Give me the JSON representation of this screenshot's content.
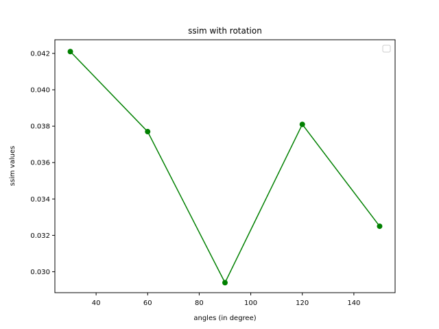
{
  "chart_data": {
    "type": "line",
    "title": "ssim with rotation",
    "xlabel": "angles (in degree)",
    "ylabel": "ssim values",
    "x": [
      30,
      60,
      90,
      120,
      150
    ],
    "series": [
      {
        "values": [
          0.0421,
          0.0377,
          0.0294,
          0.0381,
          0.0325
        ]
      }
    ],
    "xlim": [
      24,
      156
    ],
    "ylim": [
      0.02885,
      0.04275
    ],
    "xticks": [
      40,
      60,
      80,
      100,
      120,
      140
    ],
    "yticks": [
      0.03,
      0.032,
      0.034,
      0.036,
      0.038,
      0.04,
      0.042
    ],
    "ytick_labels": [
      "0.030",
      "0.032",
      "0.034",
      "0.036",
      "0.038",
      "0.040",
      "0.042"
    ],
    "grid": false,
    "legend": "top-right (empty)",
    "colors": {
      "series": "#008000",
      "axes": "#000000"
    }
  }
}
